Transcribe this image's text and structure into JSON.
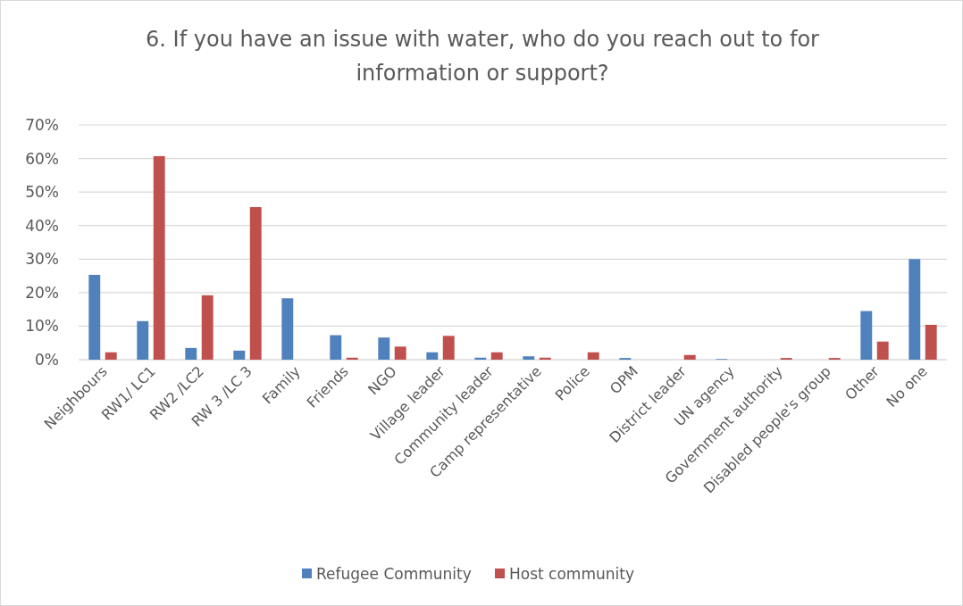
{
  "chart_data": {
    "type": "bar",
    "title": "6. If you have an issue with water, who do you reach out to for information or support?",
    "categories": [
      "Neighbours",
      "RW1/ LC1",
      "RW2 /LC2",
      "RW 3 /LC 3",
      "Family",
      "Friends",
      "NGO",
      "Village leader",
      "Community leader",
      "Camp representative",
      "Police",
      "OPM",
      "District leader",
      "UN agency",
      "Government authority",
      "Disabled people's group",
      "Other",
      "No one"
    ],
    "series": [
      {
        "name": "Refugee Community",
        "color": "#4f81bd",
        "values": [
          25.3,
          11.5,
          3.5,
          2.7,
          18.3,
          7.3,
          6.6,
          2.2,
          0.6,
          1.0,
          0,
          0.5,
          0,
          0.2,
          0,
          0,
          14.5,
          30
        ]
      },
      {
        "name": "Host community",
        "color": "#c0504d",
        "values": [
          2.2,
          60.7,
          19.2,
          45.5,
          0,
          0.6,
          3.9,
          7.1,
          2.2,
          0.6,
          2.2,
          0,
          1.4,
          0,
          0.5,
          0.5,
          5.4,
          10.4
        ]
      }
    ],
    "ylim": [
      0,
      70
    ],
    "yticks": [
      {
        "value": 0,
        "label": "0%"
      },
      {
        "value": 10,
        "label": "10%"
      },
      {
        "value": 20,
        "label": "20%"
      },
      {
        "value": 30,
        "label": "30%"
      },
      {
        "value": 40,
        "label": "40%"
      },
      {
        "value": 50,
        "label": "50%"
      },
      {
        "value": 60,
        "label": "60%"
      },
      {
        "value": 70,
        "label": "70%"
      }
    ],
    "grid": "y",
    "legend": "bottom"
  }
}
